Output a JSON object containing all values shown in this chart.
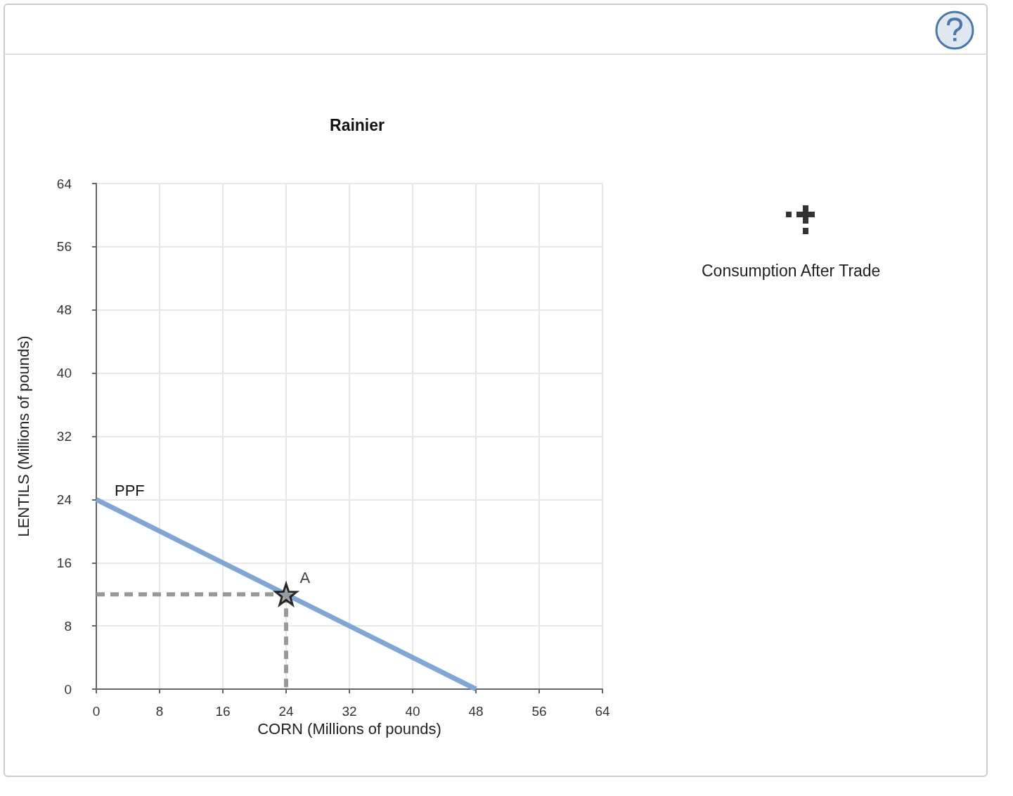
{
  "chart_data": {
    "type": "line",
    "title": "Rainier",
    "xlabel": "CORN (Millions of pounds)",
    "ylabel": "LENTILS (Millions of pounds)",
    "xlim": [
      0,
      64
    ],
    "ylim": [
      0,
      64
    ],
    "xticks": [
      0,
      8,
      16,
      24,
      32,
      40,
      48,
      56,
      64
    ],
    "yticks": [
      0,
      8,
      16,
      24,
      32,
      40,
      48,
      56,
      64
    ],
    "grid": true,
    "series": [
      {
        "name": "PPF",
        "color": "#7fa6d4",
        "x": [
          0,
          48
        ],
        "values": [
          24,
          0
        ],
        "marker": "none",
        "line_style": "solid"
      },
      {
        "color": "#999999",
        "x": [
          0,
          24
        ],
        "values": [
          12,
          12
        ],
        "marker": "none",
        "line_style": "dashed"
      },
      {
        "color": "#999999",
        "x": [
          24,
          24
        ],
        "values": [
          12,
          0
        ],
        "marker": "none",
        "line_style": "dashed"
      },
      {
        "name": "A",
        "type": "scatter",
        "color": "#999999",
        "x": [
          24
        ],
        "values": [
          12
        ],
        "marker": "star"
      }
    ],
    "annotations": [
      "Consumption After Trade"
    ]
  }
}
